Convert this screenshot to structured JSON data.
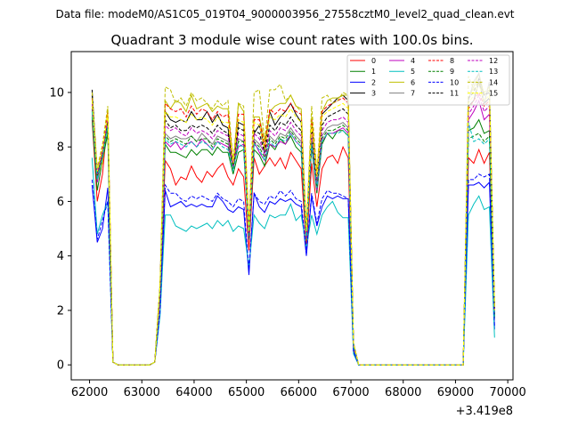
{
  "chart_data": {
    "type": "line",
    "suptitle": "Data file: modeM0/AS1C05_019T04_9000003956_27558cztM0_level2_quad_clean.evt",
    "title": "Quadrant 3 module wise count rates with 100.0s bins.",
    "xlabel": "",
    "ylabel": "",
    "x_offset_label": "+3.419e8",
    "xlim": [
      61650,
      70100
    ],
    "ylim": [
      -0.55,
      11.5
    ],
    "xticks": [
      62000,
      63000,
      64000,
      65000,
      66000,
      67000,
      68000,
      69000,
      70000
    ],
    "xtick_labels": [
      "62000",
      "63000",
      "64000",
      "65000",
      "66000",
      "67000",
      "68000",
      "69000",
      "70000"
    ],
    "yticks": [
      0,
      2,
      4,
      6,
      8,
      10
    ],
    "ytick_labels": [
      "0",
      "2",
      "4",
      "6",
      "8",
      "10"
    ],
    "x": [
      62048,
      62148,
      62248,
      62348,
      62448,
      63248,
      63348,
      63448,
      63548,
      63648,
      63748,
      63848,
      63948,
      64048,
      64148,
      64248,
      64348,
      64448,
      64548,
      64648,
      64748,
      64848,
      64948,
      65048,
      65148,
      65248,
      65348,
      65448,
      65548,
      65648,
      65748,
      65848,
      65948,
      66048,
      66148,
      66248,
      66348,
      66448,
      66548,
      66648,
      66748,
      66848,
      66948,
      67048,
      67148,
      69148,
      69248,
      69348,
      69448,
      69548,
      69648,
      69748
    ],
    "gaps": [
      [
        62448,
        63248
      ],
      [
        67148,
        69148
      ]
    ],
    "gap_value": 0,
    "series": [
      {
        "name": "0",
        "color": "#ff0000",
        "dash": "solid",
        "values": [
          9.0,
          6.0,
          7.0,
          9.1,
          0.1,
          0.1,
          2.5,
          7.5,
          7.2,
          6.6,
          6.9,
          6.8,
          7.3,
          6.9,
          6.7,
          7.1,
          6.9,
          7.2,
          7.4,
          6.9,
          6.6,
          7.2,
          6.9,
          4.2,
          7.6,
          7.0,
          7.3,
          7.6,
          7.3,
          7.6,
          7.2,
          7.8,
          7.5,
          7.2,
          4.3,
          7.4,
          5.8,
          7.2,
          7.6,
          7.7,
          7.4,
          8.0,
          7.6,
          0.6,
          0.0,
          0.0,
          7.6,
          7.4,
          7.9,
          7.4,
          7.8,
          1.8
        ]
      },
      {
        "name": "1",
        "color": "#008000",
        "dash": "solid",
        "values": [
          9.1,
          6.4,
          7.5,
          8.5,
          0.1,
          0.1,
          2.7,
          8.1,
          7.8,
          7.8,
          7.7,
          7.6,
          7.9,
          7.7,
          7.9,
          7.9,
          7.7,
          8.0,
          7.8,
          7.8,
          7.0,
          7.8,
          7.9,
          4.6,
          7.9,
          7.7,
          7.3,
          8.1,
          7.9,
          8.3,
          8.1,
          8.4,
          8.0,
          7.8,
          4.6,
          8.0,
          6.3,
          8.1,
          8.5,
          8.3,
          8.6,
          8.6,
          8.4,
          0.7,
          0.0,
          0.0,
          8.6,
          8.7,
          9.0,
          8.5,
          8.6,
          1.7
        ]
      },
      {
        "name": "2",
        "color": "#0000ff",
        "dash": "solid",
        "values": [
          6.6,
          4.5,
          5.0,
          6.5,
          0.1,
          0.1,
          1.9,
          6.4,
          5.8,
          5.9,
          6.0,
          5.8,
          5.9,
          5.8,
          5.9,
          5.8,
          5.8,
          6.2,
          6.0,
          5.7,
          5.6,
          5.8,
          5.7,
          3.3,
          6.3,
          5.8,
          5.6,
          6.0,
          5.9,
          6.1,
          6.0,
          6.1,
          5.9,
          5.8,
          4.0,
          6.2,
          5.1,
          5.8,
          6.2,
          6.1,
          6.2,
          6.1,
          6.1,
          0.5,
          0.0,
          0.0,
          6.6,
          6.6,
          6.7,
          6.5,
          6.7,
          1.3
        ]
      },
      {
        "name": "3",
        "color": "#000000",
        "dash": "solid",
        "values": [
          10.1,
          7.0,
          7.8,
          8.9,
          0.1,
          0.1,
          2.9,
          9.3,
          9.0,
          8.9,
          9.0,
          8.9,
          9.3,
          9.0,
          9.0,
          9.3,
          8.9,
          9.2,
          8.8,
          8.7,
          7.2,
          8.9,
          8.8,
          4.9,
          8.5,
          8.8,
          7.9,
          9.3,
          8.8,
          9.1,
          9.3,
          9.6,
          9.2,
          8.9,
          4.8,
          8.8,
          6.8,
          9.2,
          9.4,
          9.6,
          9.8,
          9.9,
          9.7,
          0.8,
          0.0,
          0.0,
          9.5,
          9.7,
          10.4,
          9.6,
          9.8,
          2.1
        ]
      },
      {
        "name": "4",
        "color": "#bf00bf",
        "dash": "solid",
        "values": [
          9.5,
          6.7,
          7.7,
          8.9,
          0.1,
          0.1,
          2.7,
          8.2,
          8.0,
          8.2,
          7.9,
          8.1,
          8.2,
          8.0,
          8.3,
          8.1,
          7.9,
          8.2,
          8.1,
          8.0,
          7.3,
          8.0,
          8.1,
          4.6,
          8.2,
          7.8,
          7.5,
          8.1,
          8.0,
          8.2,
          8.1,
          8.5,
          8.2,
          8.0,
          4.6,
          8.1,
          6.4,
          8.2,
          8.5,
          8.5,
          8.6,
          8.7,
          8.5,
          0.7,
          0.0,
          0.0,
          9.0,
          9.3,
          9.7,
          9.0,
          9.2,
          1.9
        ]
      },
      {
        "name": "5",
        "color": "#00bfbf",
        "dash": "solid",
        "values": [
          7.6,
          4.8,
          5.5,
          6.0,
          0.1,
          0.1,
          1.8,
          5.5,
          5.5,
          5.1,
          5.0,
          4.9,
          5.1,
          5.0,
          5.1,
          5.2,
          5.0,
          5.3,
          5.1,
          5.3,
          4.9,
          5.1,
          5.0,
          3.6,
          5.5,
          5.2,
          5.0,
          5.5,
          5.4,
          5.5,
          5.5,
          5.9,
          5.3,
          5.5,
          4.3,
          5.5,
          4.8,
          5.5,
          5.8,
          6.0,
          5.6,
          5.4,
          5.4,
          0.4,
          0.0,
          0.0,
          5.5,
          5.9,
          6.2,
          5.7,
          5.8,
          1.0
        ]
      },
      {
        "name": "6",
        "color": "#bfbf00",
        "dash": "solid",
        "values": [
          9.5,
          6.9,
          7.4,
          9.4,
          0.1,
          0.1,
          2.9,
          9.7,
          9.4,
          9.7,
          9.6,
          9.3,
          9.9,
          9.4,
          9.5,
          9.6,
          9.3,
          9.5,
          9.4,
          9.4,
          7.3,
          9.6,
          9.3,
          5.1,
          9.1,
          9.1,
          8.2,
          9.3,
          9.5,
          9.6,
          9.6,
          9.9,
          9.5,
          9.4,
          4.9,
          9.1,
          7.0,
          9.3,
          9.7,
          9.8,
          9.8,
          9.9,
          9.9,
          0.8,
          0.0,
          0.0,
          9.8,
          10.2,
          10.7,
          9.9,
          10.1,
          2.2
        ]
      },
      {
        "name": "7",
        "color": "#808080",
        "dash": "solid",
        "values": [
          9.3,
          6.8,
          7.6,
          8.8,
          0.1,
          0.1,
          2.8,
          8.5,
          8.3,
          8.4,
          8.3,
          8.3,
          8.4,
          8.2,
          8.5,
          8.3,
          8.1,
          8.4,
          8.3,
          8.2,
          7.2,
          8.3,
          8.2,
          4.7,
          8.3,
          8.1,
          7.8,
          8.4,
          8.2,
          8.5,
          8.4,
          8.7,
          8.4,
          8.2,
          4.7,
          8.3,
          6.6,
          8.4,
          8.7,
          8.8,
          8.8,
          8.9,
          8.7,
          0.7,
          0.0,
          0.0,
          9.7,
          10.4,
          10.7,
          9.6,
          10.4,
          1.9
        ]
      },
      {
        "name": "8",
        "color": "#ff0000",
        "dash": "dashed",
        "values": [
          9.8,
          7.2,
          8.0,
          9.3,
          0.1,
          0.1,
          2.9,
          9.6,
          9.4,
          9.3,
          9.4,
          9.1,
          9.5,
          9.2,
          9.4,
          9.3,
          9.0,
          9.3,
          9.1,
          9.2,
          7.4,
          9.2,
          9.2,
          5.0,
          9.0,
          9.0,
          8.0,
          9.4,
          9.2,
          9.4,
          9.3,
          9.6,
          9.3,
          9.2,
          4.9,
          9.0,
          6.9,
          9.3,
          9.5,
          9.6,
          9.7,
          9.8,
          9.6,
          0.8,
          0.0,
          0.0,
          9.4,
          9.7,
          10.0,
          9.5,
          9.7,
          2.0
        ]
      },
      {
        "name": "9",
        "color": "#008000",
        "dash": "dashed",
        "values": [
          9.4,
          6.9,
          7.7,
          8.7,
          0.1,
          0.1,
          2.8,
          8.4,
          8.2,
          8.3,
          8.2,
          8.1,
          8.4,
          8.2,
          8.3,
          8.3,
          8.0,
          8.3,
          8.2,
          8.1,
          7.2,
          8.2,
          8.2,
          4.7,
          8.2,
          8.0,
          7.6,
          8.3,
          8.1,
          8.4,
          8.3,
          8.6,
          8.3,
          8.1,
          4.7,
          8.2,
          6.5,
          8.3,
          8.6,
          8.6,
          8.7,
          8.8,
          8.6,
          0.7,
          0.0,
          0.0,
          8.3,
          8.4,
          8.5,
          8.2,
          8.4,
          1.8
        ]
      },
      {
        "name": "10",
        "color": "#0000ff",
        "dash": "dashed",
        "values": [
          6.8,
          4.6,
          5.3,
          6.0,
          0.1,
          0.1,
          2.0,
          6.6,
          6.3,
          6.3,
          6.1,
          6.0,
          6.2,
          6.1,
          6.2,
          6.1,
          6.0,
          6.3,
          6.1,
          6.0,
          5.8,
          6.1,
          6.0,
          3.5,
          6.3,
          6.0,
          5.9,
          6.2,
          6.1,
          6.4,
          6.2,
          6.4,
          6.1,
          6.0,
          4.1,
          6.3,
          5.2,
          6.1,
          6.4,
          6.3,
          6.3,
          6.2,
          6.1,
          0.5,
          0.0,
          0.0,
          6.8,
          6.8,
          7.0,
          6.9,
          7.0,
          1.4
        ]
      },
      {
        "name": "11",
        "color": "#000000",
        "dash": "dashed",
        "values": [
          9.9,
          7.1,
          7.9,
          9.0,
          0.1,
          0.1,
          2.9,
          9.0,
          8.7,
          8.8,
          8.6,
          8.6,
          8.8,
          8.7,
          8.8,
          8.7,
          8.5,
          8.8,
          8.6,
          8.5,
          7.3,
          8.7,
          8.6,
          4.8,
          8.6,
          8.5,
          7.8,
          8.8,
          8.6,
          8.9,
          8.8,
          9.1,
          8.8,
          8.6,
          4.8,
          8.6,
          6.8,
          8.8,
          9.1,
          9.2,
          9.3,
          9.4,
          9.2,
          0.8,
          0.0,
          0.0,
          9.8,
          10.0,
          10.5,
          9.9,
          10.0,
          2.0
        ]
      },
      {
        "name": "12",
        "color": "#bf00bf",
        "dash": "dashed",
        "values": [
          9.6,
          7.0,
          7.8,
          9.1,
          0.1,
          0.1,
          2.8,
          8.8,
          8.6,
          8.7,
          8.5,
          8.4,
          8.7,
          8.5,
          8.6,
          8.5,
          8.3,
          8.6,
          8.5,
          8.4,
          7.3,
          8.5,
          8.4,
          4.7,
          8.5,
          8.3,
          7.7,
          8.6,
          8.4,
          8.7,
          8.6,
          8.9,
          8.6,
          8.4,
          4.7,
          8.5,
          6.7,
          8.6,
          8.9,
          9.0,
          9.0,
          9.1,
          8.9,
          0.7,
          0.0,
          0.0,
          9.2,
          9.5,
          9.9,
          9.3,
          9.5,
          1.9
        ]
      },
      {
        "name": "13",
        "color": "#00bfbf",
        "dash": "dashed",
        "values": [
          9.3,
          6.8,
          7.6,
          8.8,
          0.1,
          0.1,
          2.7,
          8.3,
          8.1,
          8.2,
          8.1,
          8.0,
          8.2,
          8.0,
          8.2,
          8.1,
          7.9,
          8.2,
          8.0,
          7.9,
          7.1,
          8.1,
          8.0,
          4.6,
          8.1,
          7.9,
          7.5,
          8.2,
          8.0,
          8.3,
          8.2,
          8.5,
          8.2,
          8.0,
          4.6,
          8.1,
          6.5,
          8.2,
          8.5,
          8.5,
          8.5,
          8.6,
          8.4,
          0.7,
          0.0,
          0.0,
          8.9,
          8.2,
          8.3,
          8.1,
          8.3,
          1.8
        ]
      },
      {
        "name": "14",
        "color": "#bfbf00",
        "dash": "dashed",
        "values": [
          10.0,
          7.2,
          8.1,
          9.5,
          0.1,
          0.1,
          3.0,
          10.2,
          10.1,
          9.6,
          9.8,
          9.5,
          10.0,
          9.7,
          9.8,
          9.6,
          9.4,
          9.7,
          9.5,
          9.7,
          7.5,
          9.6,
          9.5,
          5.1,
          10.0,
          10.1,
          8.2,
          10.1,
          10.1,
          10.3,
          9.7,
          9.9,
          9.5,
          9.3,
          5.0,
          9.5,
          7.1,
          9.8,
          9.9,
          9.6,
          9.7,
          10.0,
          9.9,
          0.8,
          0.0,
          0.0,
          10.6,
          10.1,
          10.4,
          10.0,
          10.2,
          2.2
        ]
      },
      {
        "name": "15",
        "color": "#ffff00",
        "dash": "dashed",
        "values": [
          9.7,
          7.1,
          7.9,
          9.2,
          0.1,
          0.1,
          2.9,
          9.3,
          9.1,
          9.1,
          9.0,
          8.9,
          9.2,
          9.0,
          9.1,
          9.0,
          8.8,
          9.1,
          8.9,
          8.9,
          7.4,
          9.0,
          8.9,
          4.9,
          8.9,
          8.8,
          7.9,
          9.1,
          9.0,
          9.2,
          9.1,
          9.4,
          9.1,
          8.9,
          4.9,
          8.8,
          6.9,
          9.1,
          9.3,
          9.4,
          9.5,
          9.6,
          9.4,
          0.8,
          0.0,
          0.0,
          9.6,
          9.9,
          10.3,
          9.7,
          9.9,
          2.0
        ]
      }
    ],
    "legend": {
      "location": "top-right",
      "columns": 4
    },
    "grid": false
  }
}
